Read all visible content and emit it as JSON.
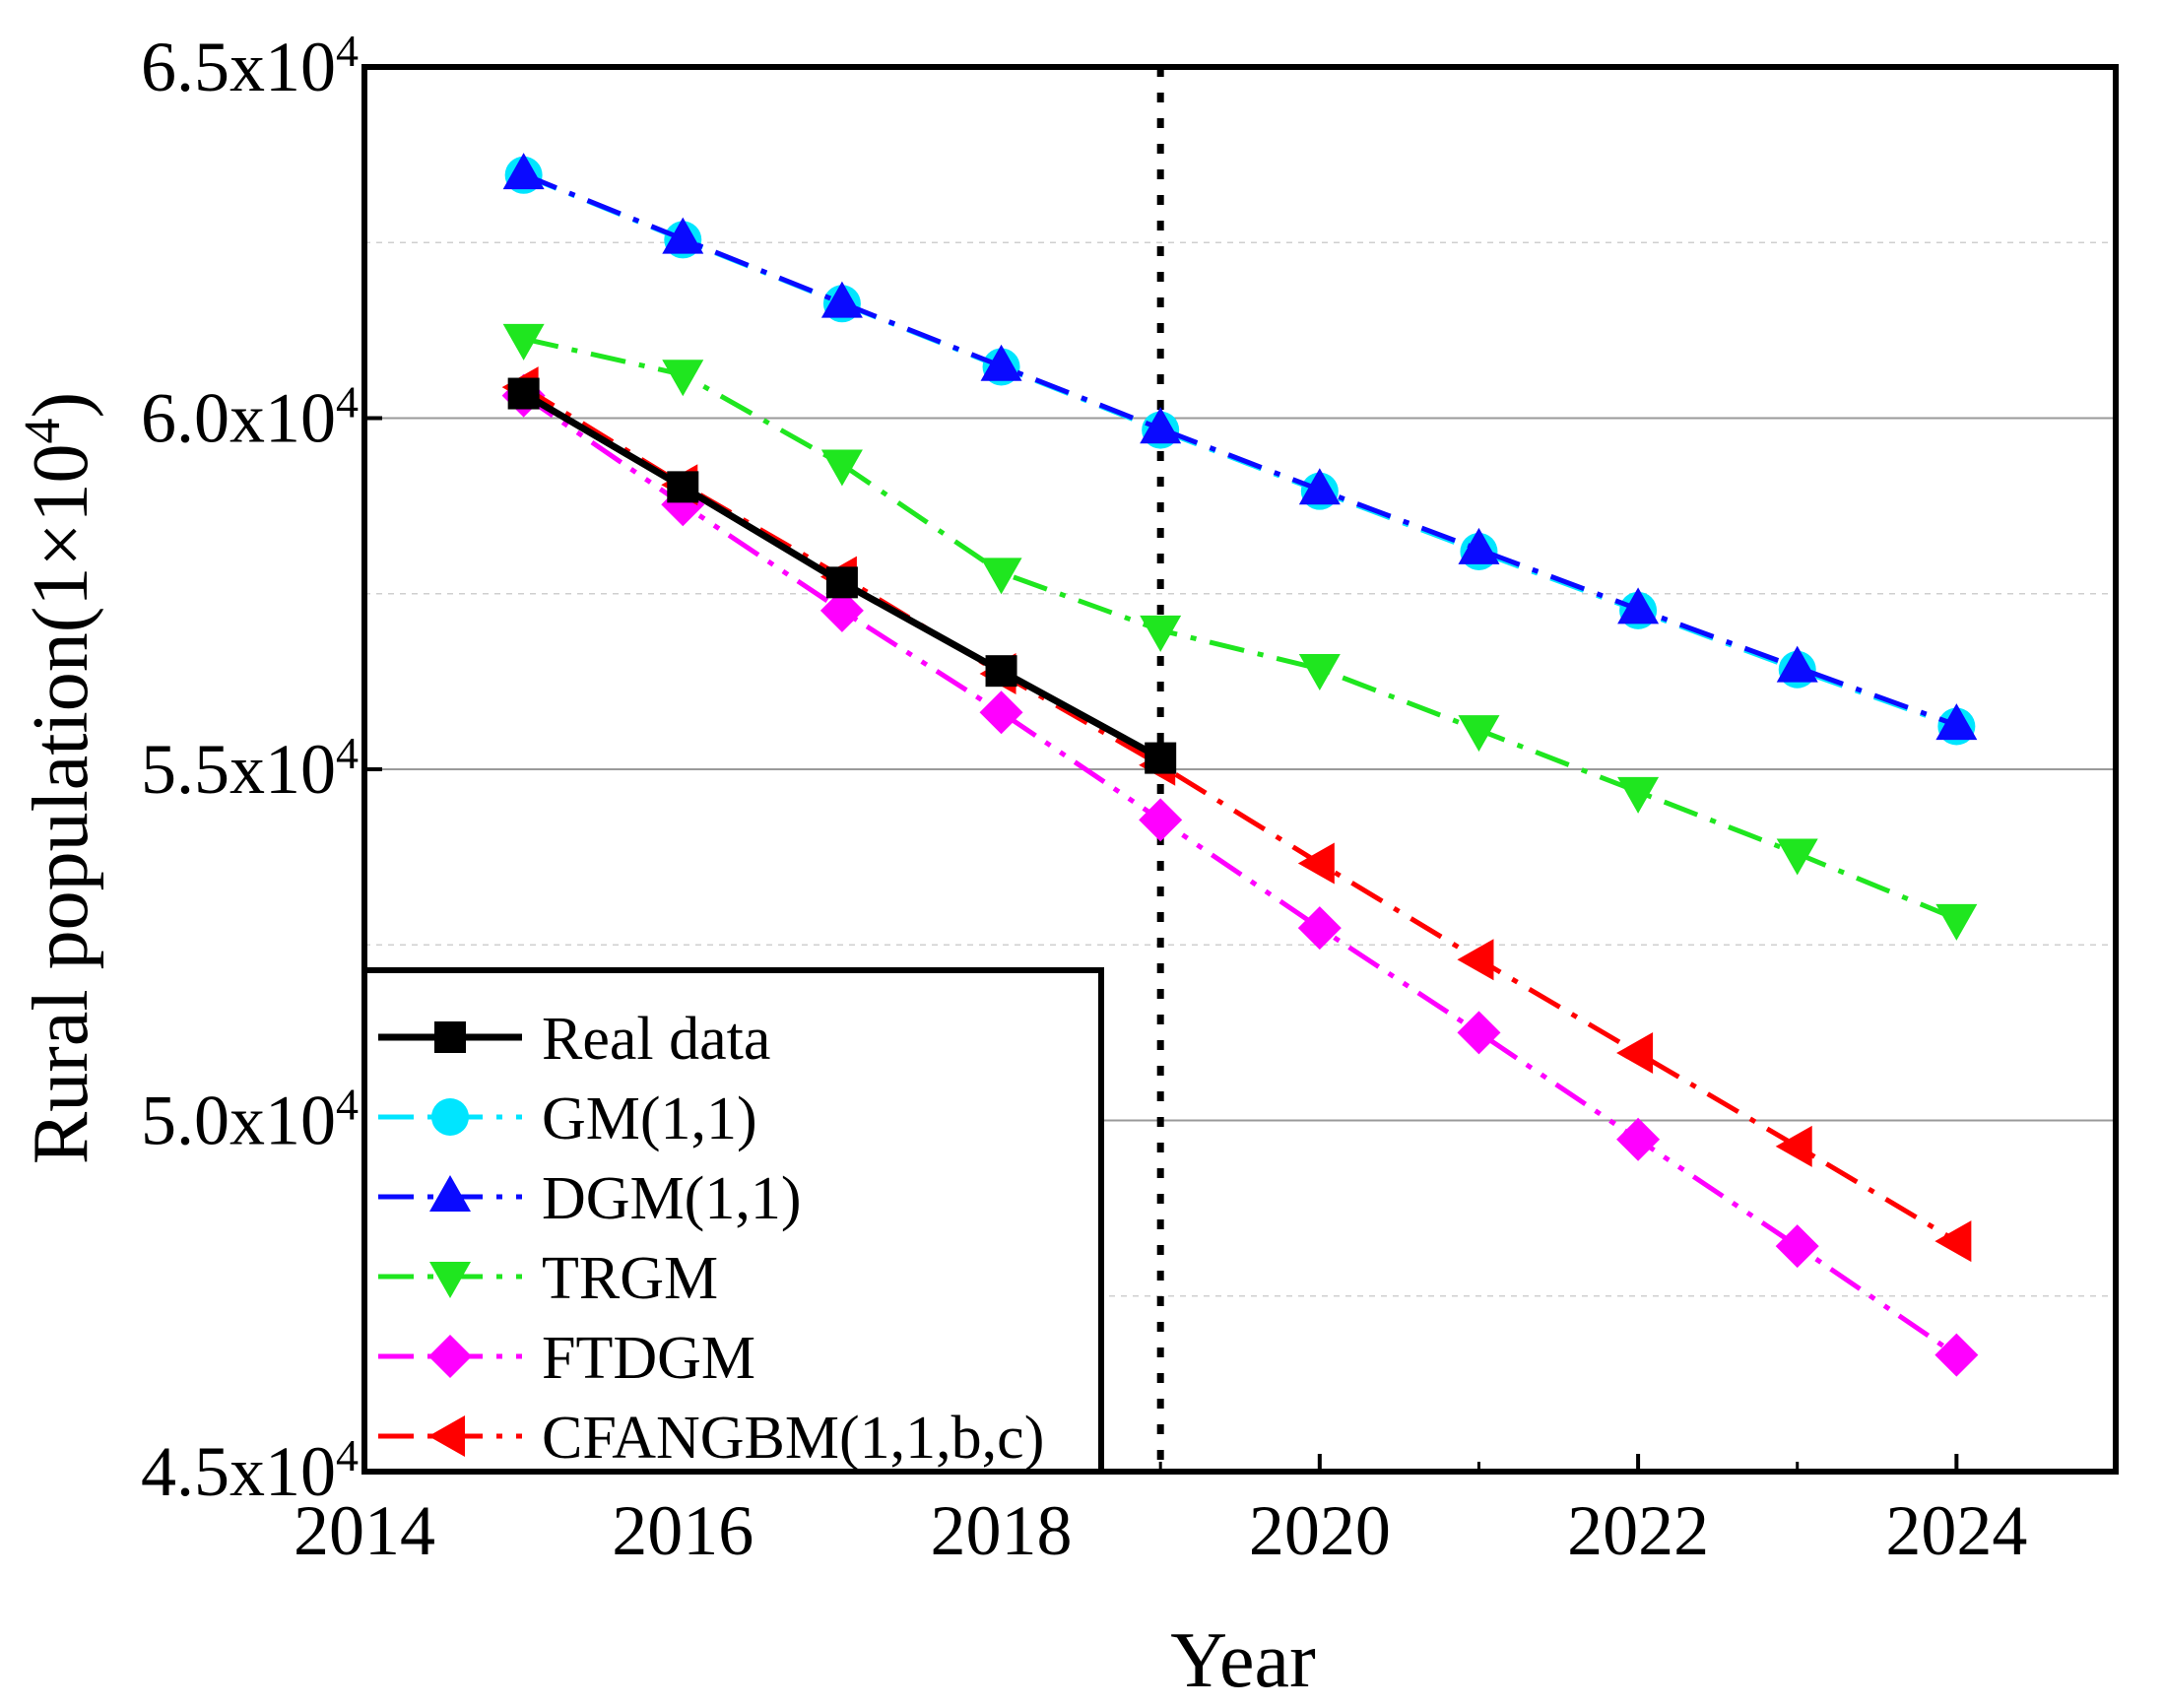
{
  "chart_data": {
    "type": "line",
    "title": "",
    "xlabel": "Year",
    "ylabel": "Rural population(1×10",
    "ylabel_exp": "4",
    "ylabel_suffix": ")",
    "xlim": [
      2014,
      2025
    ],
    "ylim": [
      45000,
      65000
    ],
    "x_ticks": [
      2014,
      2016,
      2018,
      2020,
      2022,
      2024
    ],
    "x_minor_ticks": [
      2015,
      2017,
      2019,
      2021,
      2023
    ],
    "y_ticks": [
      {
        "value": 45000,
        "mantissa": "4.5x10",
        "exp": "4"
      },
      {
        "value": 50000,
        "mantissa": "5.0x10",
        "exp": "4"
      },
      {
        "value": 55000,
        "mantissa": "5.5x10",
        "exp": "4"
      },
      {
        "value": 60000,
        "mantissa": "6.0x10",
        "exp": "4"
      },
      {
        "value": 65000,
        "mantissa": "6.5x10",
        "exp": "4"
      }
    ],
    "y_grid_major": [
      50000,
      55000,
      60000
    ],
    "y_grid_minor": [
      47500,
      52500,
      57500,
      62500
    ],
    "vline_x": 2019,
    "legend_position": "bottom-left",
    "series": [
      {
        "name": "GM(1,1)",
        "color": "#00e5ff",
        "marker": "circle",
        "dash": "dashdot",
        "x": [
          2015,
          2016,
          2017,
          2018,
          2019,
          2020,
          2021,
          2022,
          2023,
          2024
        ],
        "y": [
          63460,
          62540,
          61630,
          60730,
          59830,
          58960,
          58100,
          57260,
          56420,
          55610
        ]
      },
      {
        "name": "DGM(1,1)",
        "color": "#0a0aff",
        "marker": "triangle-up",
        "dash": "dashdot",
        "x": [
          2015,
          2016,
          2017,
          2018,
          2019,
          2020,
          2021,
          2022,
          2023,
          2024
        ],
        "y": [
          63470,
          62550,
          61640,
          60740,
          59850,
          58980,
          58130,
          57280,
          56450,
          55630
        ]
      },
      {
        "name": "TRGM",
        "color": "#1fe61f",
        "marker": "triangle-down",
        "dash": "dashdot",
        "x": [
          2015,
          2016,
          2017,
          2018,
          2019,
          2020,
          2021,
          2022,
          2023,
          2024
        ],
        "y": [
          61130,
          60620,
          59340,
          57800,
          56980,
          56430,
          55560,
          54680,
          53800,
          52870
        ]
      },
      {
        "name": "FTDGM",
        "color": "#ff00ff",
        "marker": "diamond",
        "dash": "dashdotdot",
        "x": [
          2015,
          2016,
          2017,
          2018,
          2019,
          2020,
          2021,
          2022,
          2023,
          2024
        ],
        "y": [
          60320,
          58770,
          57260,
          55810,
          54280,
          52740,
          51250,
          49730,
          48210,
          46660
        ]
      },
      {
        "name": "CFANGBM(1,1,b,c)",
        "color": "#ff0000",
        "marker": "triangle-left",
        "dash": "dashdot",
        "x": [
          2015,
          2016,
          2017,
          2018,
          2019,
          2020,
          2021,
          2022,
          2023,
          2024
        ],
        "y": [
          60440,
          59050,
          57740,
          56360,
          55060,
          53660,
          52290,
          50960,
          49630,
          48280
        ]
      },
      {
        "name": "Real data",
        "color": "#000000",
        "marker": "square",
        "dash": "solid",
        "x": [
          2015,
          2016,
          2017,
          2018,
          2019
        ],
        "y": [
          60350,
          59020,
          57660,
          56400,
          55160
        ]
      }
    ],
    "legend_order": [
      "Real data",
      "GM(1,1)",
      "DGM(1,1)",
      "TRGM",
      "FTDGM",
      "CFANGBM(1,1,b,c)"
    ]
  }
}
